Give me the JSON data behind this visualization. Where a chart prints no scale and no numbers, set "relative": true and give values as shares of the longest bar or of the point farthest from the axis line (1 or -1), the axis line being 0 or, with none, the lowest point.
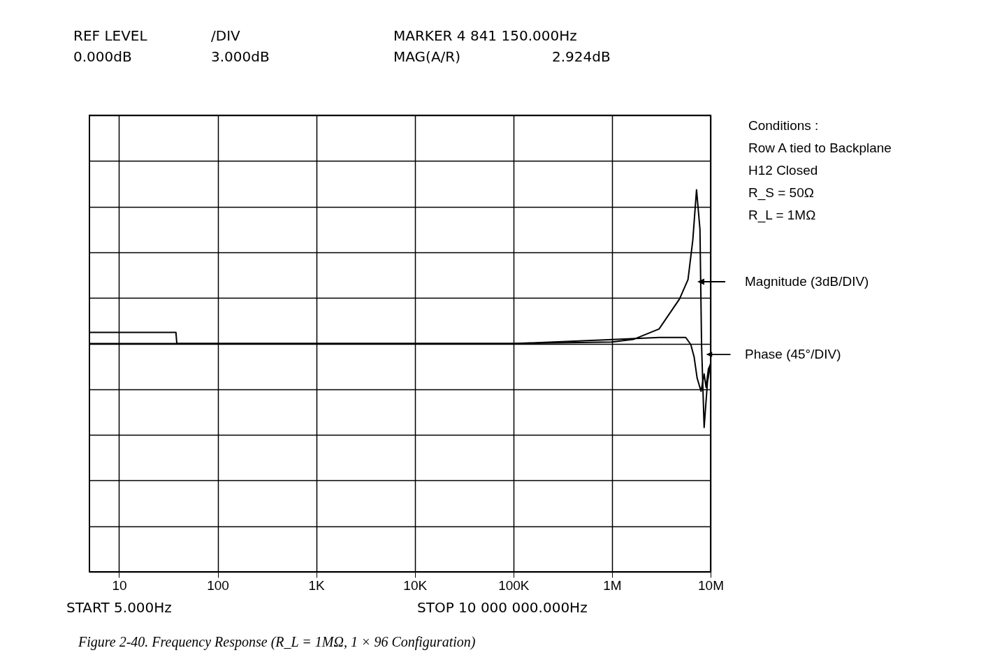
{
  "chart_data": {
    "type": "line",
    "relative": true,
    "x": [
      5,
      100000,
      1000000,
      1640000,
      3000000,
      4841150,
      5900000,
      6600000,
      7200000,
      7800000,
      8100000,
      8600000,
      9300000,
      10000000
    ],
    "series": [
      {
        "name": "Magnitude (3dB/DIV)",
        "color": "#000000",
        "values": [
          0,
          0,
          0.01,
          0.027,
          0.095,
          0.29,
          0.416,
          0.673,
          1,
          0.743,
          -0.01,
          -0.545,
          -0.248,
          -0.129
        ]
      },
      {
        "name": "Phase (45°/DIV)",
        "color": "#000000",
        "x": [
          5,
          37.7,
          38.5,
          100000,
          1000000,
          3000000,
          5600000,
          6300000,
          6800000,
          7300000,
          8000000,
          8600000,
          9000000,
          9500000,
          10000000
        ],
        "values": [
          0.073,
          0.073,
          0,
          0,
          0.026,
          0.04,
          0.04,
          -0.007,
          -0.086,
          -0.224,
          -0.31,
          -0.198,
          -0.284,
          -0.165,
          -0.132
        ]
      }
    ],
    "xlim": [
      5,
      10000000
    ],
    "xticks": [
      10,
      100,
      {
        "value": 1000,
        "label": "1K"
      },
      {
        "value": 10000,
        "label": "10K"
      },
      {
        "value": 100000,
        "label": "100K"
      },
      {
        "value": 1000000,
        "label": "1M"
      },
      {
        "value": 10000000,
        "label": "10M"
      }
    ],
    "log": "x",
    "grid": true,
    "legend": "right",
    "marker": "none",
    "line_style": "solid",
    "tick_labels": "x",
    "annotations": [
      "REF LEVEL",
      "/DIV",
      "MARKER 4 841 150.000Hz",
      "0.000dB",
      "3.000dB",
      "MAG(A/R)",
      "2.924dB",
      "START 5.000Hz",
      "STOP 10 000 000.000Hz",
      "Conditions :",
      "Row A tied to Backplane",
      "H12 Closed",
      "R_S = 50Ω",
      "R_L = 1MΩ",
      "Figure 2-40. Frequency Response (R_L = 1MΩ, 1 × 96 Configuration)"
    ]
  }
}
